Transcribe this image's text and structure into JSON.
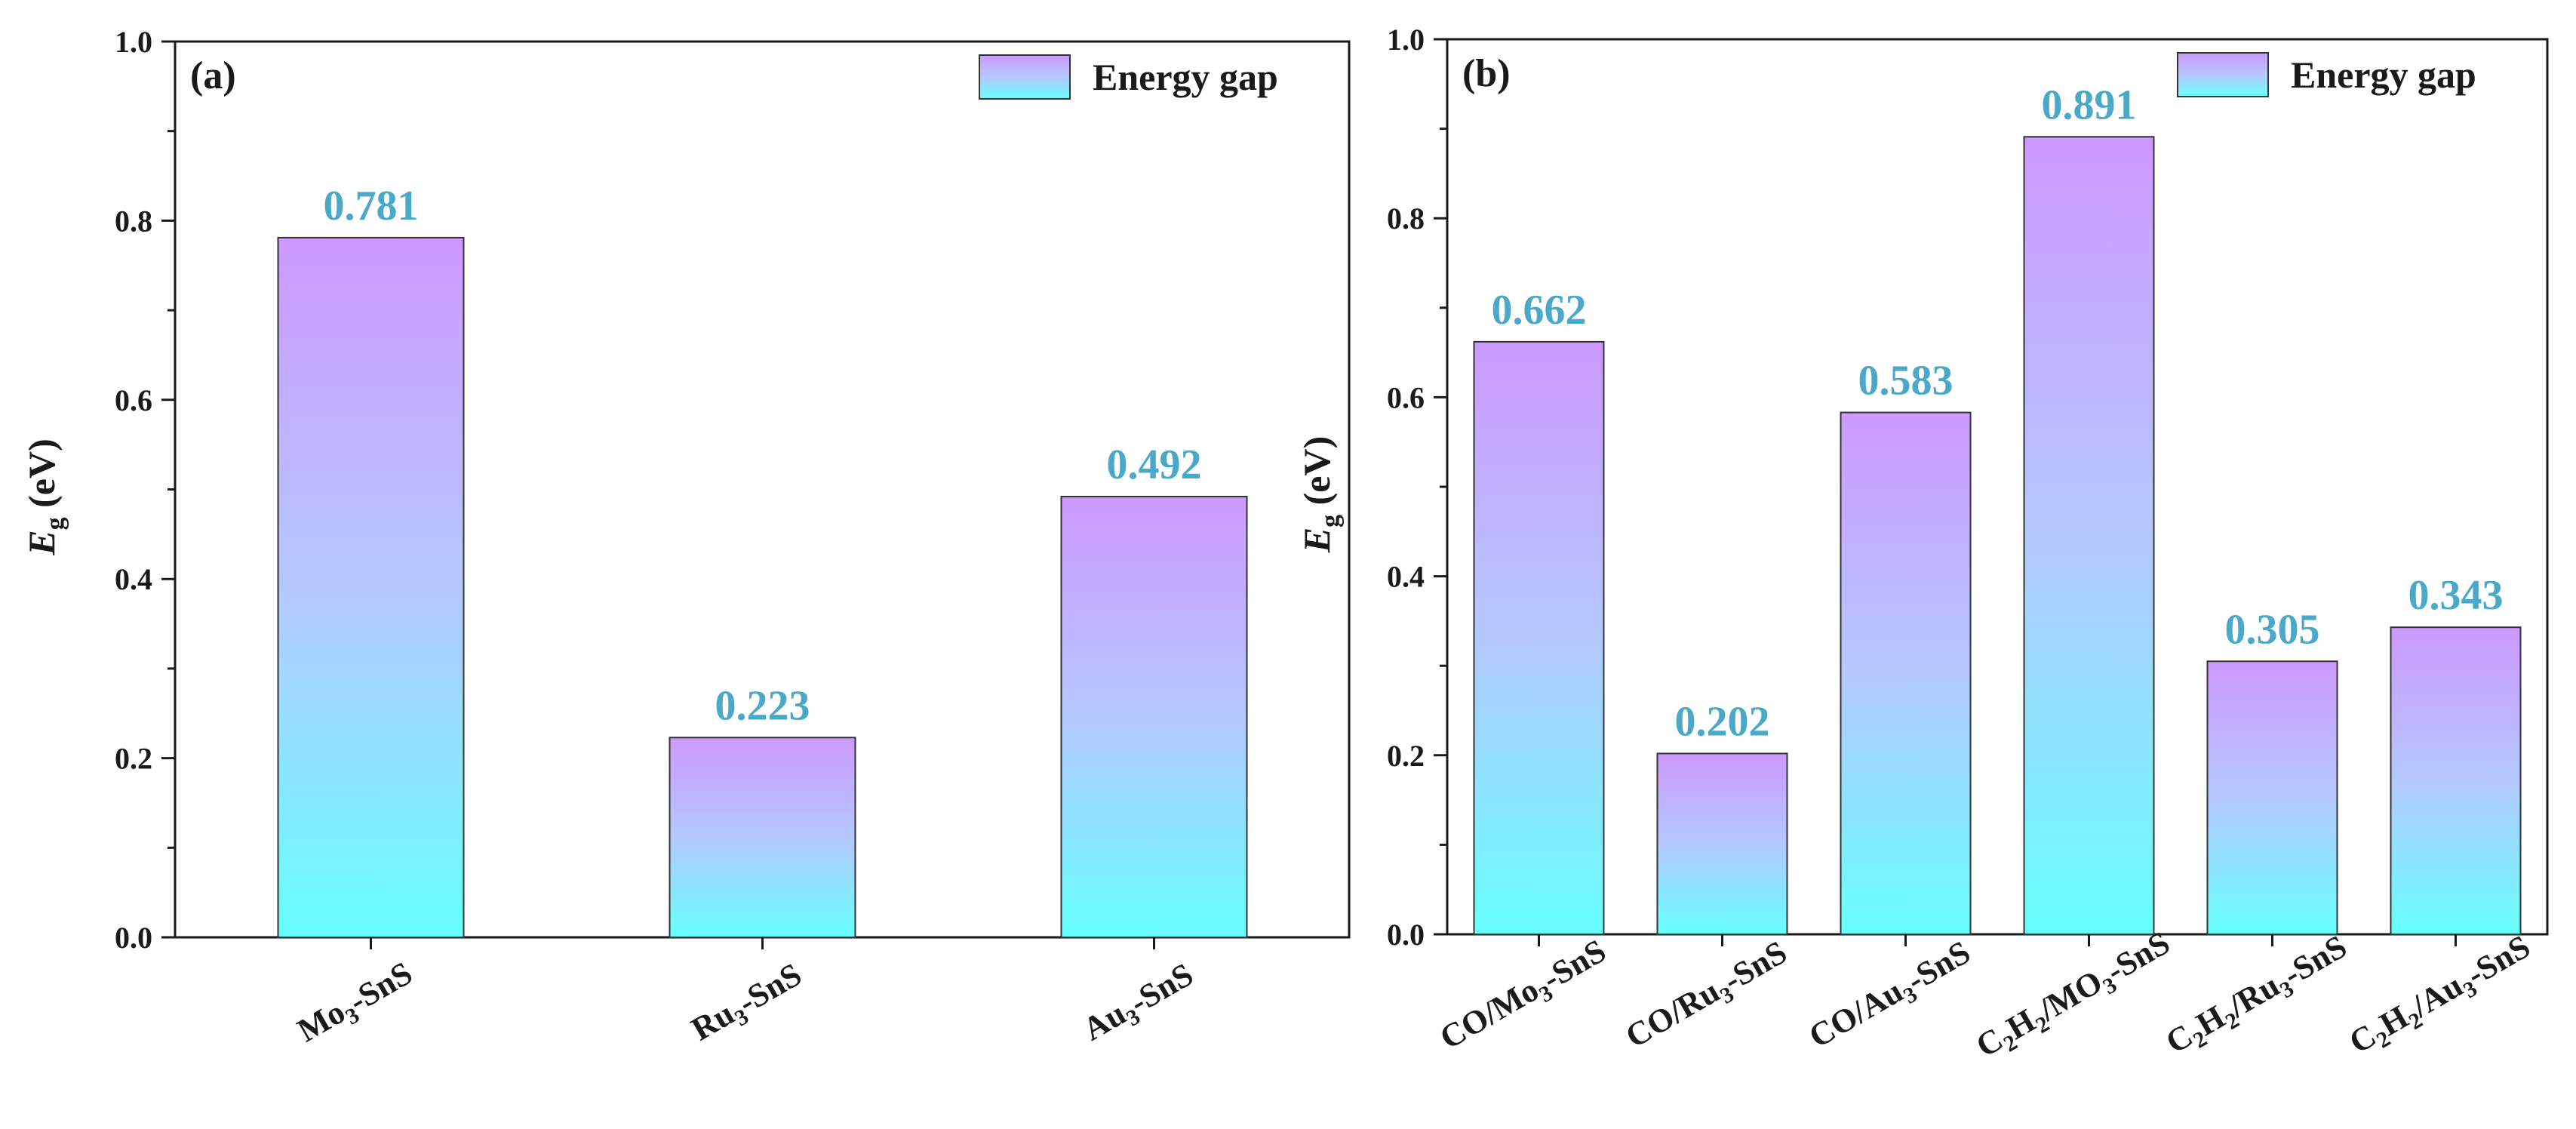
{
  "chart_data": [
    {
      "type": "bar",
      "panel": "(a)",
      "title": "",
      "categories": [
        "Mo3-SnS",
        "Ru3-SnS",
        "Au3-SnS"
      ],
      "category_parts": [
        [
          [
            "Mo",
            ""
          ],
          [
            "3",
            "sub"
          ],
          [
            "-SnS",
            ""
          ]
        ],
        [
          [
            "Ru",
            ""
          ],
          [
            "3",
            "sub"
          ],
          [
            "-SnS",
            ""
          ]
        ],
        [
          [
            "Au",
            ""
          ],
          [
            "3",
            "sub"
          ],
          [
            "-SnS",
            ""
          ]
        ]
      ],
      "values": [
        0.781,
        0.223,
        0.492
      ],
      "value_labels": [
        "0.781",
        "0.223",
        "0.492"
      ],
      "series_name": "Energy gap",
      "xlabel": "",
      "ylabel": "Eg (eV)",
      "ylabel_main": "E",
      "ylabel_sub": "g",
      "ylabel_unit": " (eV)",
      "ylim": [
        0.0,
        1.0
      ],
      "yticks": [
        "0.0",
        "0.2",
        "0.4",
        "0.6",
        "0.8",
        "1.0"
      ],
      "ytick_values": [
        0.0,
        0.2,
        0.4,
        0.6,
        0.8,
        1.0
      ],
      "legend": "top-right",
      "grid": false
    },
    {
      "type": "bar",
      "panel": "(b)",
      "title": "",
      "categories": [
        "CO/Mo3-SnS",
        "CO/Ru3-SnS",
        "CO/Au3-SnS",
        "C2H2/MO3-SnS",
        "C2H2/Ru3-SnS",
        "C2H2/Au3-SnS"
      ],
      "category_parts": [
        [
          [
            "CO/Mo",
            ""
          ],
          [
            "3",
            "sub"
          ],
          [
            "-SnS",
            ""
          ]
        ],
        [
          [
            "CO/Ru",
            ""
          ],
          [
            "3",
            "sub"
          ],
          [
            "-SnS",
            ""
          ]
        ],
        [
          [
            "CO/Au",
            ""
          ],
          [
            "3",
            "sub"
          ],
          [
            "-SnS",
            ""
          ]
        ],
        [
          [
            "C",
            ""
          ],
          [
            "2",
            "sub"
          ],
          [
            "H",
            ""
          ],
          [
            "2",
            "sub"
          ],
          [
            "/MO",
            ""
          ],
          [
            "3",
            "sub"
          ],
          [
            "-SnS",
            ""
          ]
        ],
        [
          [
            "C",
            ""
          ],
          [
            "2",
            "sub"
          ],
          [
            "H",
            ""
          ],
          [
            "2",
            "sub"
          ],
          [
            "/Ru",
            ""
          ],
          [
            "3",
            "sub"
          ],
          [
            "-SnS",
            ""
          ]
        ],
        [
          [
            "C",
            ""
          ],
          [
            "2",
            "sub"
          ],
          [
            "H",
            ""
          ],
          [
            "2",
            "sub"
          ],
          [
            "/Au",
            ""
          ],
          [
            "3",
            "sub"
          ],
          [
            "-SnS",
            ""
          ]
        ]
      ],
      "values": [
        0.662,
        0.202,
        0.583,
        0.891,
        0.305,
        0.343
      ],
      "value_labels": [
        "0.662",
        "0.202",
        "0.583",
        "0.891",
        "0.305",
        "0.343"
      ],
      "series_name": "Energy gap",
      "xlabel": "",
      "ylabel": "Eg (eV)",
      "ylabel_main": "E",
      "ylabel_sub": "g",
      "ylabel_unit": " (eV)",
      "ylim": [
        0.0,
        1.0
      ],
      "yticks": [
        "0.0",
        "0.2",
        "0.4",
        "0.6",
        "0.8",
        "1.0"
      ],
      "ytick_values": [
        0.0,
        0.2,
        0.4,
        0.6,
        0.8,
        1.0
      ],
      "legend": "top-right",
      "grid": false
    }
  ],
  "colors": {
    "bar_top": "#cc99ff",
    "bar_mid": "#b4c8ff",
    "bar_bottom": "#66ffff",
    "value_label": "#4aa8c8",
    "axis": "#1a1a1a"
  }
}
